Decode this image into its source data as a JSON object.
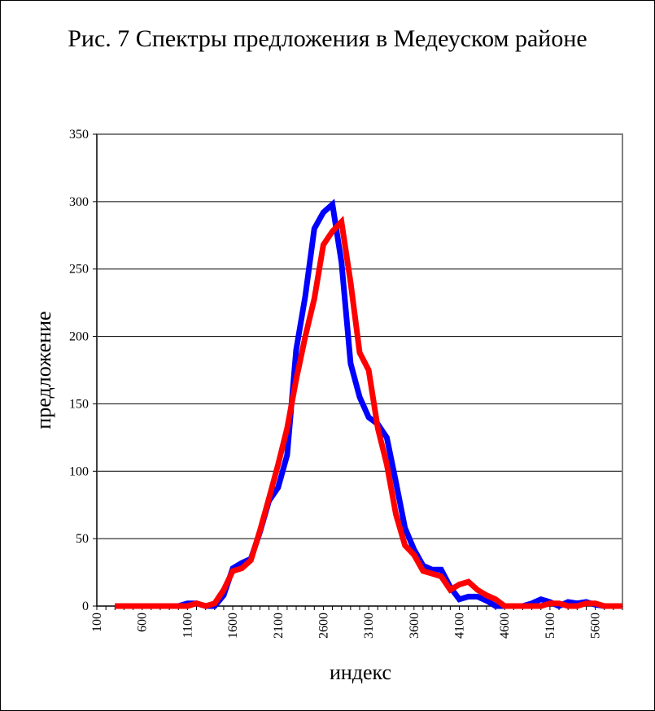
{
  "chart_data": {
    "type": "line",
    "title": "Рис. 7 Спектры предложения в Медеуском районе",
    "xlabel": "индекс",
    "ylabel": "предложение",
    "xlim": [
      100,
      5900
    ],
    "ylim": [
      0,
      350
    ],
    "yticks": [
      0,
      50,
      100,
      150,
      200,
      250,
      300,
      350
    ],
    "xticks": [
      100,
      600,
      1100,
      1600,
      2100,
      2600,
      3100,
      3600,
      4100,
      4600,
      5100,
      5600
    ],
    "grid": "horizontal",
    "colors": {
      "blue_series": "#0000ff",
      "red_series": "#ff0000",
      "gridline": "#000000",
      "plot_border": "#808080"
    },
    "x": [
      300,
      400,
      500,
      600,
      700,
      800,
      900,
      1000,
      1100,
      1200,
      1300,
      1400,
      1500,
      1600,
      1700,
      1800,
      1900,
      2000,
      2100,
      2200,
      2300,
      2400,
      2500,
      2600,
      2700,
      2800,
      2900,
      3000,
      3100,
      3200,
      3300,
      3400,
      3500,
      3600,
      3700,
      3800,
      3900,
      4000,
      4100,
      4200,
      4300,
      4400,
      4500,
      4600,
      4700,
      4800,
      4900,
      5000,
      5100,
      5200,
      5300,
      5400,
      5500,
      5600,
      5700,
      5800,
      5900
    ],
    "series": [
      {
        "values": [
          0,
          0,
          0,
          0,
          0,
          0,
          0,
          0,
          2,
          2,
          0,
          0,
          8,
          28,
          32,
          35,
          55,
          78,
          88,
          112,
          190,
          230,
          280,
          292,
          298,
          255,
          180,
          155,
          140,
          135,
          125,
          92,
          58,
          42,
          30,
          27,
          27,
          14,
          5,
          7,
          7,
          4,
          0,
          0,
          0,
          0,
          2,
          5,
          3,
          0,
          3,
          2,
          3,
          1,
          0,
          0,
          0
        ]
      },
      {
        "values": [
          0,
          0,
          0,
          0,
          0,
          0,
          0,
          0,
          0,
          2,
          0,
          2,
          12,
          26,
          28,
          34,
          56,
          80,
          105,
          132,
          168,
          200,
          228,
          268,
          278,
          285,
          240,
          188,
          175,
          132,
          105,
          68,
          45,
          38,
          26,
          24,
          22,
          12,
          16,
          18,
          12,
          8,
          5,
          0,
          0,
          0,
          0,
          0,
          2,
          2,
          0,
          0,
          2,
          2,
          0,
          0,
          0
        ]
      }
    ]
  }
}
